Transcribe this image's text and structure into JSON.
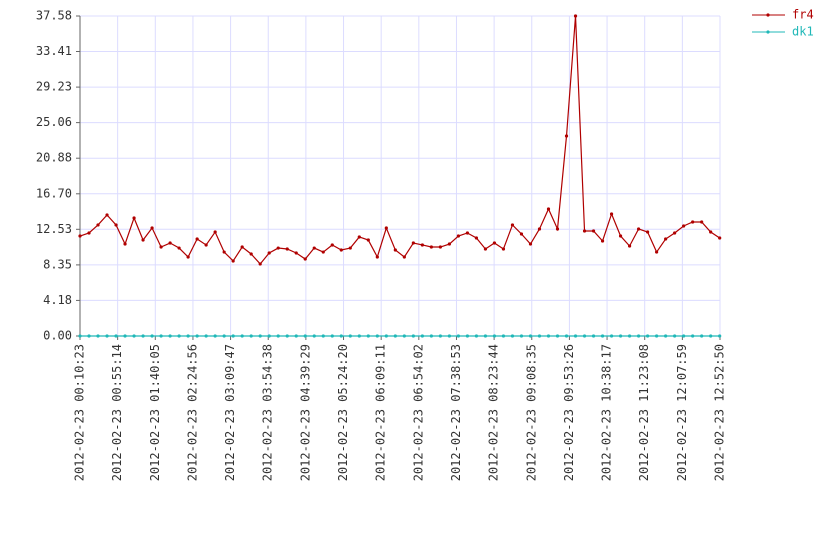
{
  "chart_data": {
    "type": "line",
    "x": [
      "2012-02-23 00:10:23",
      "2012-02-23 00:21:07",
      "2012-02-23 00:31:51",
      "2012-02-23 00:42:35",
      "2012-02-23 00:53:19",
      "2012-02-23 01:04:03",
      "2012-02-23 01:14:47",
      "2012-02-23 01:25:31",
      "2012-02-23 01:36:15",
      "2012-02-23 01:46:59",
      "2012-02-23 01:57:43",
      "2012-02-23 02:08:27",
      "2012-02-23 02:19:11",
      "2012-02-23 02:29:55",
      "2012-02-23 02:40:39",
      "2012-02-23 02:51:23",
      "2012-02-23 03:02:07",
      "2012-02-23 03:12:51",
      "2012-02-23 03:23:35",
      "2012-02-23 03:34:19",
      "2012-02-23 03:45:03",
      "2012-02-23 03:55:47",
      "2012-02-23 04:06:31",
      "2012-02-23 04:17:15",
      "2012-02-23 04:27:59",
      "2012-02-23 04:38:43",
      "2012-02-23 04:49:27",
      "2012-02-23 05:00:11",
      "2012-02-23 05:10:55",
      "2012-02-23 05:21:39",
      "2012-02-23 05:32:23",
      "2012-02-23 05:43:07",
      "2012-02-23 05:53:51",
      "2012-02-23 06:04:35",
      "2012-02-23 06:15:19",
      "2012-02-23 06:26:03",
      "2012-02-23 06:36:47",
      "2012-02-23 06:47:31",
      "2012-02-23 06:58:15",
      "2012-02-23 07:08:59",
      "2012-02-23 07:19:43",
      "2012-02-23 07:30:27",
      "2012-02-23 07:41:11",
      "2012-02-23 07:51:55",
      "2012-02-23 08:02:39",
      "2012-02-23 08:13:23",
      "2012-02-23 08:24:07",
      "2012-02-23 08:34:51",
      "2012-02-23 08:45:35",
      "2012-02-23 08:56:19",
      "2012-02-23 09:07:03",
      "2012-02-23 09:17:47",
      "2012-02-23 09:28:31",
      "2012-02-23 09:39:15",
      "2012-02-23 09:49:59",
      "2012-02-23 10:00:43",
      "2012-02-23 10:11:27",
      "2012-02-23 10:22:11",
      "2012-02-23 10:32:55",
      "2012-02-23 10:43:39",
      "2012-02-23 10:54:23",
      "2012-02-23 11:05:07",
      "2012-02-23 11:15:51",
      "2012-02-23 11:26:35",
      "2012-02-23 11:37:19",
      "2012-02-23 11:48:03",
      "2012-02-23 11:58:47",
      "2012-02-23 12:09:31",
      "2012-02-23 12:20:15",
      "2012-02-23 12:30:59",
      "2012-02-23 12:41:43",
      "2012-02-23 12:52:27"
    ],
    "series": [
      {
        "name": "fr4",
        "color": "#b00000",
        "values": [
          11.74,
          12.1,
          13.04,
          14.21,
          13.04,
          10.8,
          13.86,
          11.27,
          12.68,
          10.45,
          10.92,
          10.33,
          9.28,
          11.39,
          10.69,
          12.21,
          9.86,
          8.81,
          10.45,
          9.63,
          8.46,
          9.75,
          10.33,
          10.22,
          9.75,
          9.04,
          10.33,
          9.86,
          10.69,
          10.1,
          10.33,
          11.63,
          11.27,
          9.28,
          12.68,
          10.1,
          9.28,
          10.92,
          10.69,
          10.45,
          10.45,
          10.8,
          11.74,
          12.1,
          11.51,
          10.22,
          10.92,
          10.22,
          13.04,
          11.98,
          10.8,
          12.57,
          14.92,
          12.57,
          23.49,
          37.58,
          12.33,
          12.33,
          11.16,
          14.33,
          11.74,
          10.57,
          12.57,
          12.21,
          9.86,
          11.39,
          12.1,
          12.92,
          13.39,
          13.39,
          12.21,
          11.51
        ]
      },
      {
        "name": "dk1",
        "color": "#20b8b8",
        "values": [
          0,
          0,
          0,
          0,
          0,
          0,
          0,
          0,
          0,
          0,
          0,
          0,
          0,
          0,
          0,
          0,
          0,
          0,
          0,
          0,
          0,
          0,
          0,
          0,
          0,
          0,
          0,
          0,
          0,
          0,
          0,
          0,
          0,
          0,
          0,
          0,
          0,
          0,
          0,
          0,
          0,
          0,
          0,
          0,
          0,
          0,
          0,
          0,
          0,
          0,
          0,
          0,
          0,
          0,
          0,
          0,
          0,
          0,
          0,
          0,
          0,
          0,
          0,
          0,
          0,
          0,
          0,
          0,
          0,
          0,
          0,
          0
        ]
      }
    ],
    "xlim": [
      "2012-02-23 00:10:23",
      "2012-02-23 12:52:50"
    ],
    "xticks": [
      "2012-02-23 00:10:23",
      "2012-02-23 00:55:14",
      "2012-02-23 01:40:05",
      "2012-02-23 02:24:56",
      "2012-02-23 03:09:47",
      "2012-02-23 03:54:38",
      "2012-02-23 04:39:29",
      "2012-02-23 05:24:20",
      "2012-02-23 06:09:11",
      "2012-02-23 06:54:02",
      "2012-02-23 07:38:53",
      "2012-02-23 08:23:44",
      "2012-02-23 09:08:35",
      "2012-02-23 09:53:26",
      "2012-02-23 10:38:17",
      "2012-02-23 11:23:08",
      "2012-02-23 12:07:59",
      "2012-02-23 12:52:50"
    ],
    "ylim": [
      0,
      37.58
    ],
    "yticks": [
      {
        "value": 0,
        "label": "0.00"
      },
      4.18,
      8.35,
      12.53,
      {
        "value": 16.7,
        "label": "16.70"
      },
      20.88,
      25.06,
      29.23,
      33.41,
      37.58
    ],
    "grid": true,
    "legend": "top-right"
  }
}
